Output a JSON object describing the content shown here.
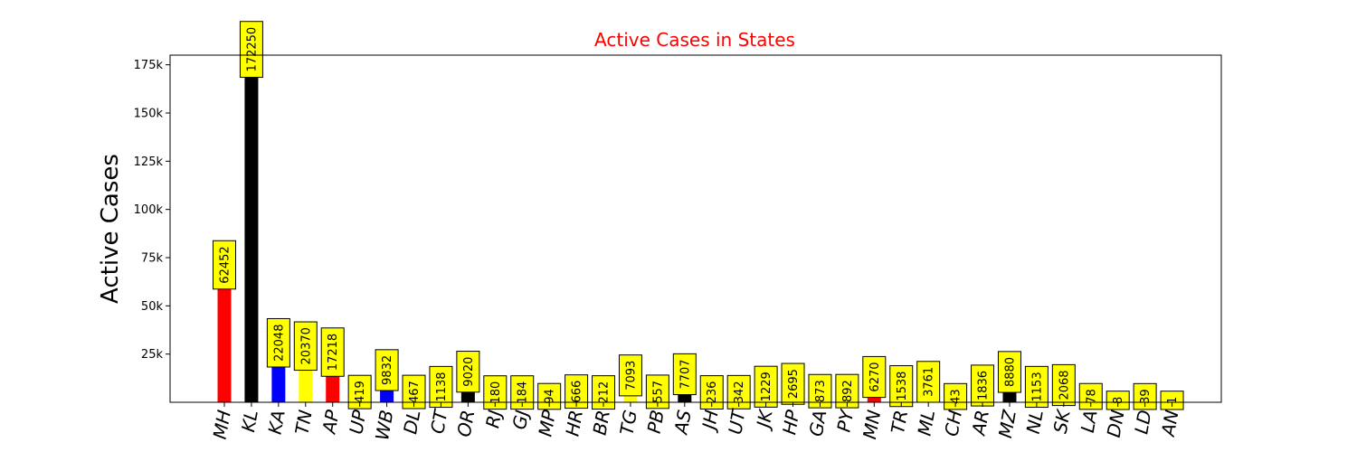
{
  "chart_data": {
    "type": "bar",
    "title": "Active Cases in States",
    "title_color": "#ff0000",
    "xlabel": "",
    "ylabel": "Active Cases",
    "ylim": [
      0,
      180000
    ],
    "yticks": [
      25000,
      50000,
      75000,
      100000,
      125000,
      150000,
      175000
    ],
    "ytick_labels": [
      "25k",
      "50k",
      "75k",
      "100k",
      "125k",
      "150k",
      "175k"
    ],
    "grid": false,
    "label_box_color": "#ffff00",
    "categories": [
      "MH",
      "KL",
      "KA",
      "TN",
      "AP",
      "UP",
      "WB",
      "DL",
      "CT",
      "OR",
      "RJ",
      "GJ",
      "MP",
      "HR",
      "BR",
      "TG",
      "PB",
      "AS",
      "JH",
      "UT",
      "JK",
      "HP",
      "GA",
      "PY",
      "MN",
      "TR",
      "ML",
      "CH",
      "AR",
      "MZ",
      "NL",
      "SK",
      "LA",
      "DN",
      "LD",
      "AN"
    ],
    "values": [
      62452,
      172250,
      22048,
      20370,
      17218,
      419,
      9832,
      467,
      1138,
      9020,
      180,
      184,
      94,
      666,
      212,
      7093,
      557,
      7707,
      236,
      342,
      1229,
      2695,
      873,
      892,
      6270,
      1538,
      3761,
      43,
      1836,
      8880,
      1153,
      2068,
      78,
      8,
      39,
      1
    ],
    "colors": [
      "#ff0000",
      "#000000",
      "#0000ff",
      "#ffff00",
      "#ff0000",
      "#000000",
      "#0000ff",
      "#ffff00",
      "#ff0000",
      "#000000",
      "#0000ff",
      "#ffff00",
      "#ff0000",
      "#000000",
      "#0000ff",
      "#ffff00",
      "#ff0000",
      "#000000",
      "#0000ff",
      "#ffff00",
      "#ff0000",
      "#000000",
      "#0000ff",
      "#ffff00",
      "#ff0000",
      "#000000",
      "#0000ff",
      "#ffff00",
      "#ff0000",
      "#000000",
      "#0000ff",
      "#ffff00",
      "#ff0000",
      "#000000",
      "#0000ff",
      "#ffff00"
    ]
  }
}
